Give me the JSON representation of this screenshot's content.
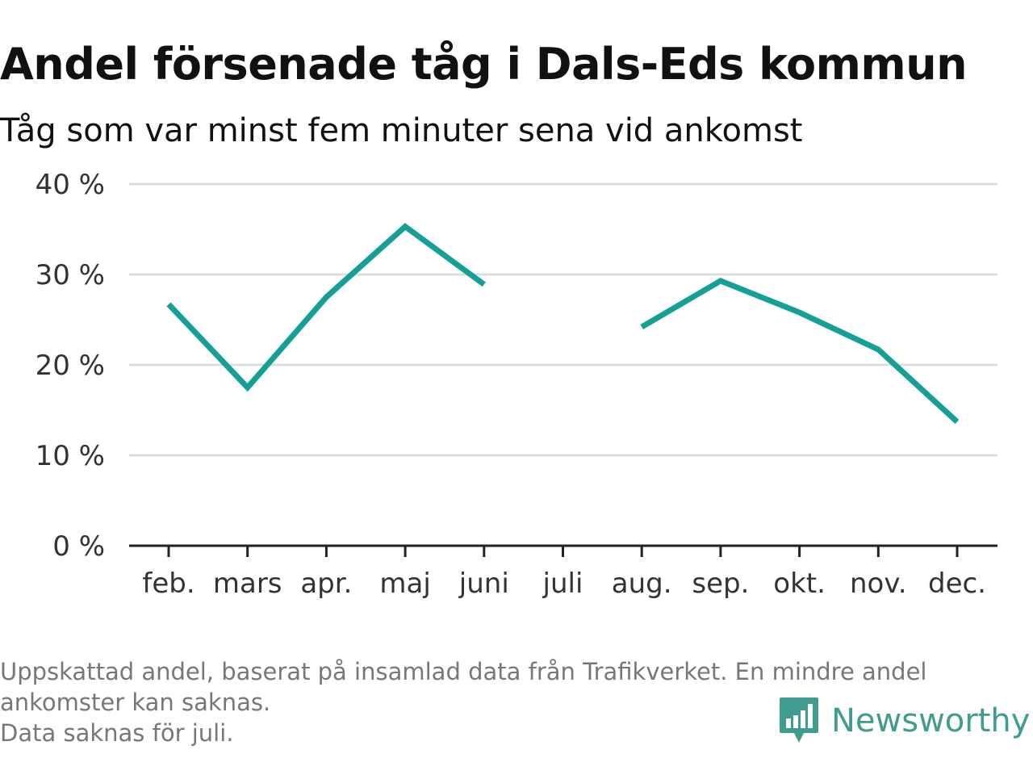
{
  "title": "Andel försenade tåg i Dals-Eds kommun",
  "subtitle": "Tåg som var minst fem minuter sena vid ankomst",
  "chart_data": {
    "type": "line",
    "title": "Andel försenade tåg i Dals-Eds kommun",
    "subtitle": "Tåg som var minst fem minuter sena vid ankomst",
    "xlabel": "",
    "ylabel": "",
    "categories": [
      "feb.",
      "mars",
      "apr.",
      "maj",
      "juni",
      "juli",
      "aug.",
      "sep.",
      "okt.",
      "nov.",
      "dec."
    ],
    "series": [
      {
        "values": [
          26.7,
          17.5,
          27.5,
          35.3,
          28.9,
          null,
          24.2,
          29.3,
          25.8,
          21.7,
          13.7
        ]
      }
    ],
    "ylim": [
      0,
      40
    ],
    "yticks": [
      0,
      10,
      20,
      30,
      40
    ],
    "ytick_labels": [
      "0 %",
      "10 %",
      "20 %",
      "30 %",
      "40 %"
    ],
    "grid": true,
    "legend": "none",
    "line_color": "#14a096",
    "grid_color": "#dddddd",
    "axis_color": "#222222"
  },
  "footnote": {
    "line1": "Uppskattad andel, baserat på insamlad data från Trafikverket. En mindre andel",
    "line2": "ankomster kan saknas.",
    "line3": "Data saknas för juli."
  },
  "brand": {
    "name": "Newsworthy",
    "icon": "newsworthy-logo-icon",
    "color": "#3f9c8e"
  }
}
